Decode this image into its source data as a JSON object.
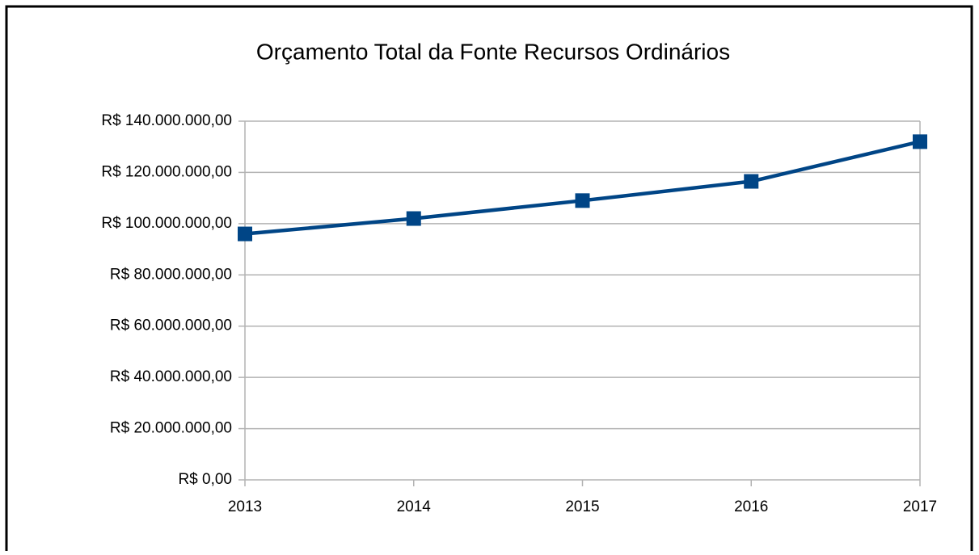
{
  "chart_data": {
    "type": "line",
    "title": "Orçamento Total da Fonte Recursos Ordinários",
    "categories": [
      "2013",
      "2014",
      "2015",
      "2016",
      "2017"
    ],
    "series": [
      {
        "name": "Orçamento Total",
        "color": "#004586",
        "values": [
          96000000,
          102000000,
          109000000,
          116500000,
          132000000
        ]
      }
    ],
    "ylim": [
      0,
      140000000
    ],
    "yticks": [
      {
        "value": 0,
        "label": "R$ 0,00"
      },
      {
        "value": 20000000,
        "label": "R$ 20.000.000,00"
      },
      {
        "value": 40000000,
        "label": "R$ 40.000.000,00"
      },
      {
        "value": 60000000,
        "label": "R$ 60.000.000,00"
      },
      {
        "value": 80000000,
        "label": "R$ 80.000.000,00"
      },
      {
        "value": 100000000,
        "label": "R$ 100.000.000,00"
      },
      {
        "value": 120000000,
        "label": "R$ 120.000.000,00"
      },
      {
        "value": 140000000,
        "label": "R$ 140.000.000,00"
      }
    ],
    "grid": true
  }
}
